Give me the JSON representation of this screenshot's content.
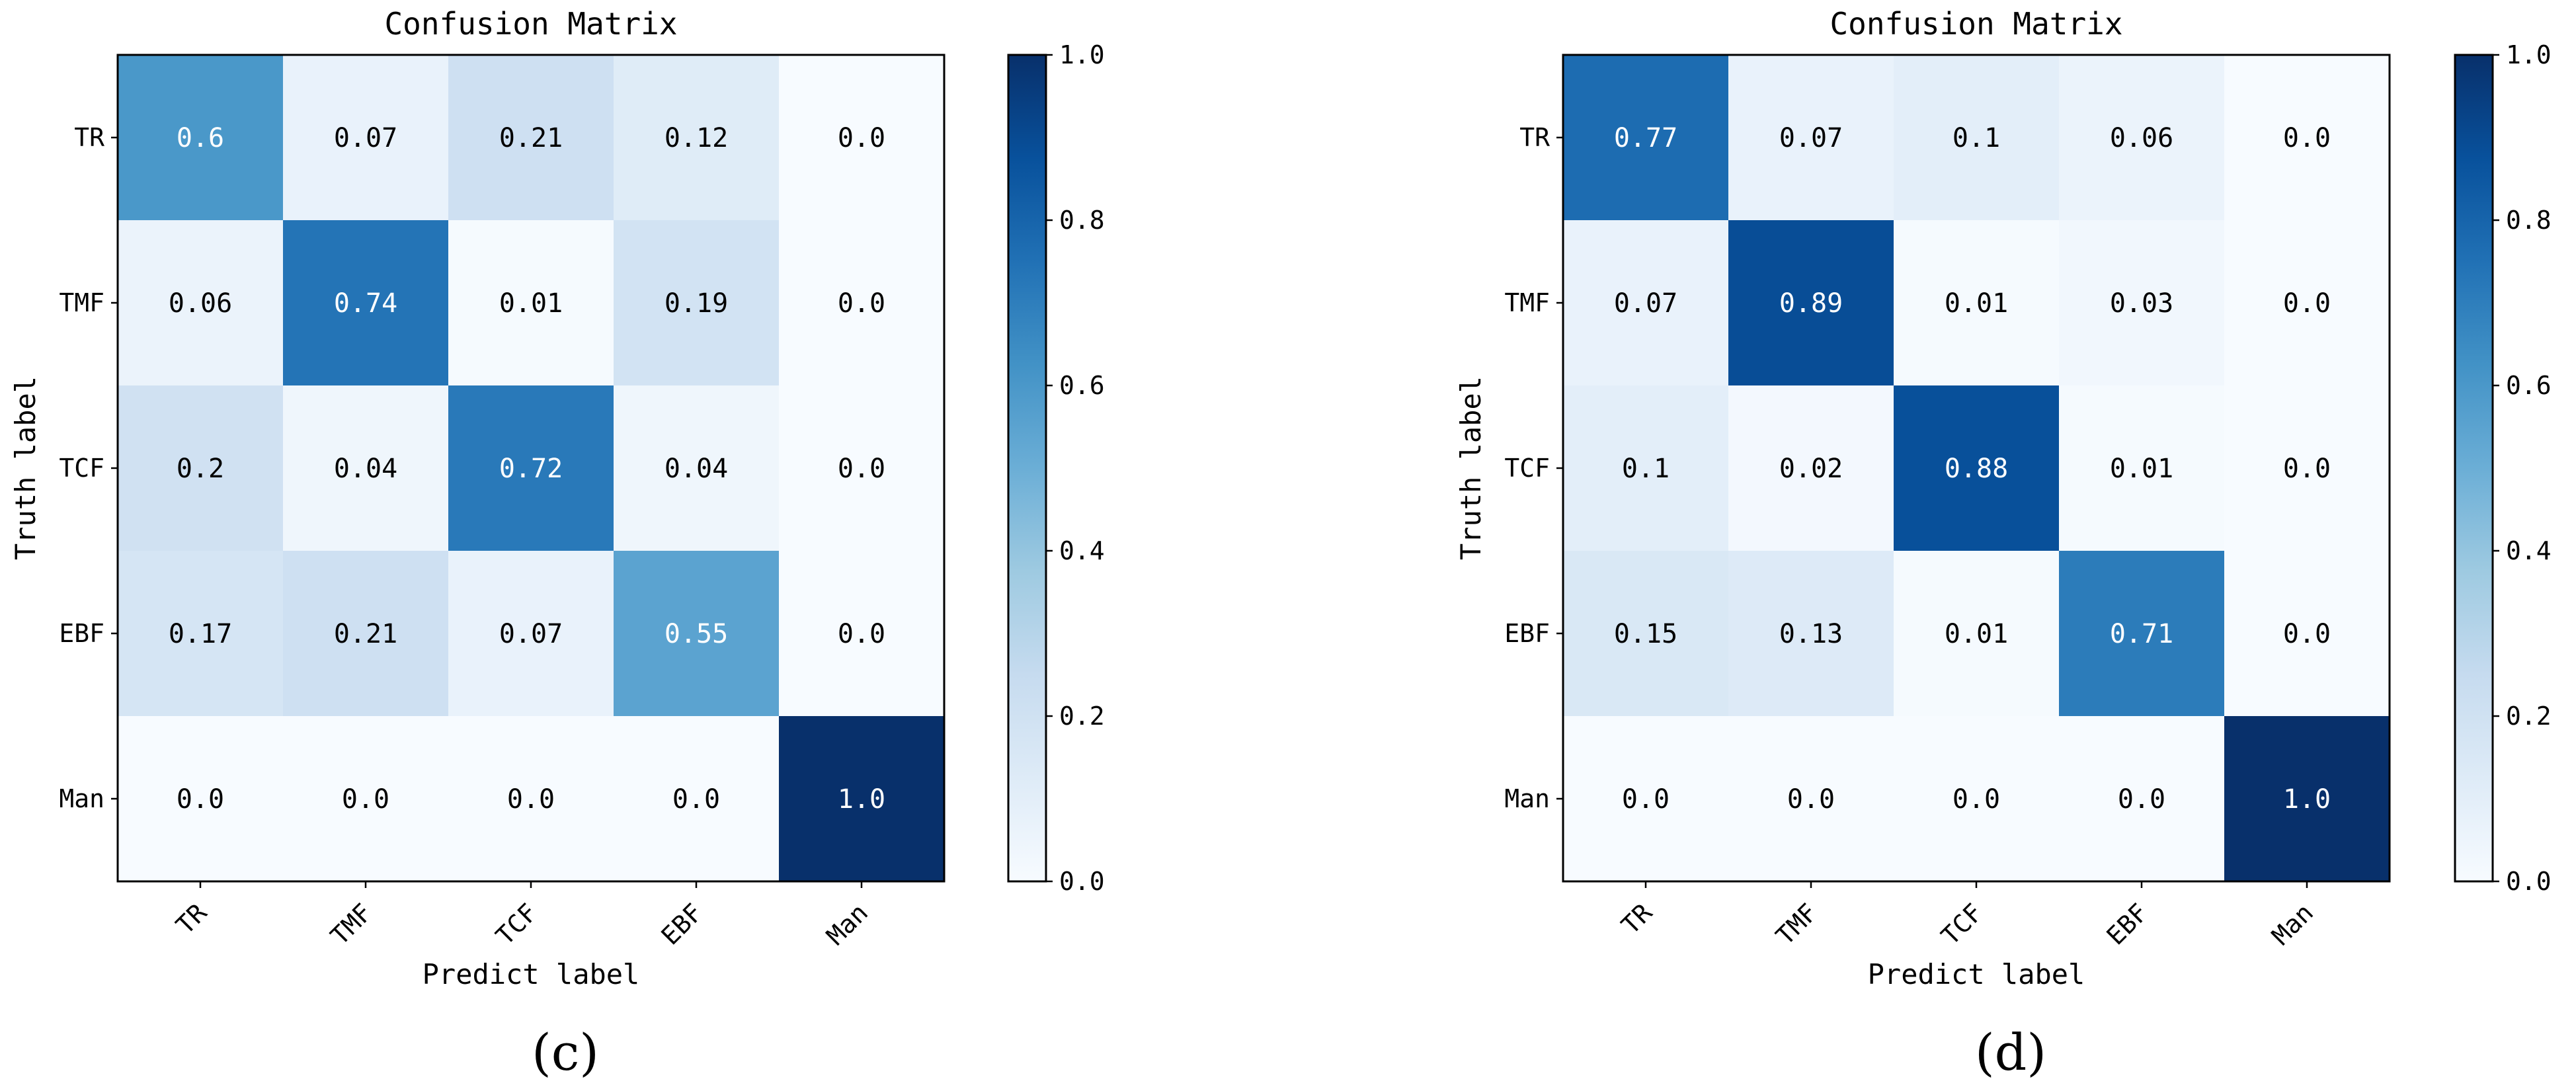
{
  "chart_data": [
    {
      "type": "heatmap",
      "panel_label": "(c)",
      "title": "Confusion Matrix",
      "xlabel": "Predict label",
      "ylabel": "Truth label",
      "x_categories": [
        "TR",
        "TMF",
        "TCF",
        "EBF",
        "Man"
      ],
      "y_categories": [
        "TR",
        "TMF",
        "TCF",
        "EBF",
        "Man"
      ],
      "cell_labels": [
        [
          "0.6",
          "0.07",
          "0.21",
          "0.12",
          "0.0"
        ],
        [
          "0.06",
          "0.74",
          "0.01",
          "0.19",
          "0.0"
        ],
        [
          "0.2",
          "0.04",
          "0.72",
          "0.04",
          "0.0"
        ],
        [
          "0.17",
          "0.21",
          "0.07",
          "0.55",
          "0.0"
        ],
        [
          "0.0",
          "0.0",
          "0.0",
          "0.0",
          "1.0"
        ]
      ],
      "colorbar": {
        "range": [
          0,
          1
        ],
        "ticks": [
          "0.0",
          "0.2",
          "0.4",
          "0.6",
          "0.8",
          "1.0"
        ]
      },
      "colormap": "Blues"
    },
    {
      "type": "heatmap",
      "panel_label": "(d)",
      "title": "Confusion Matrix",
      "xlabel": "Predict label",
      "ylabel": "Truth label",
      "x_categories": [
        "TR",
        "TMF",
        "TCF",
        "EBF",
        "Man"
      ],
      "y_categories": [
        "TR",
        "TMF",
        "TCF",
        "EBF",
        "Man"
      ],
      "cell_labels": [
        [
          "0.77",
          "0.07",
          "0.1",
          "0.06",
          "0.0"
        ],
        [
          "0.07",
          "0.89",
          "0.01",
          "0.03",
          "0.0"
        ],
        [
          "0.1",
          "0.02",
          "0.88",
          "0.01",
          "0.0"
        ],
        [
          "0.15",
          "0.13",
          "0.01",
          "0.71",
          "0.0"
        ],
        [
          "0.0",
          "0.0",
          "0.0",
          "0.0",
          "1.0"
        ]
      ],
      "colorbar": {
        "range": [
          0,
          1
        ],
        "ticks": [
          "0.0",
          "0.2",
          "0.4",
          "0.6",
          "0.8",
          "1.0"
        ]
      },
      "colormap": "Blues"
    }
  ]
}
